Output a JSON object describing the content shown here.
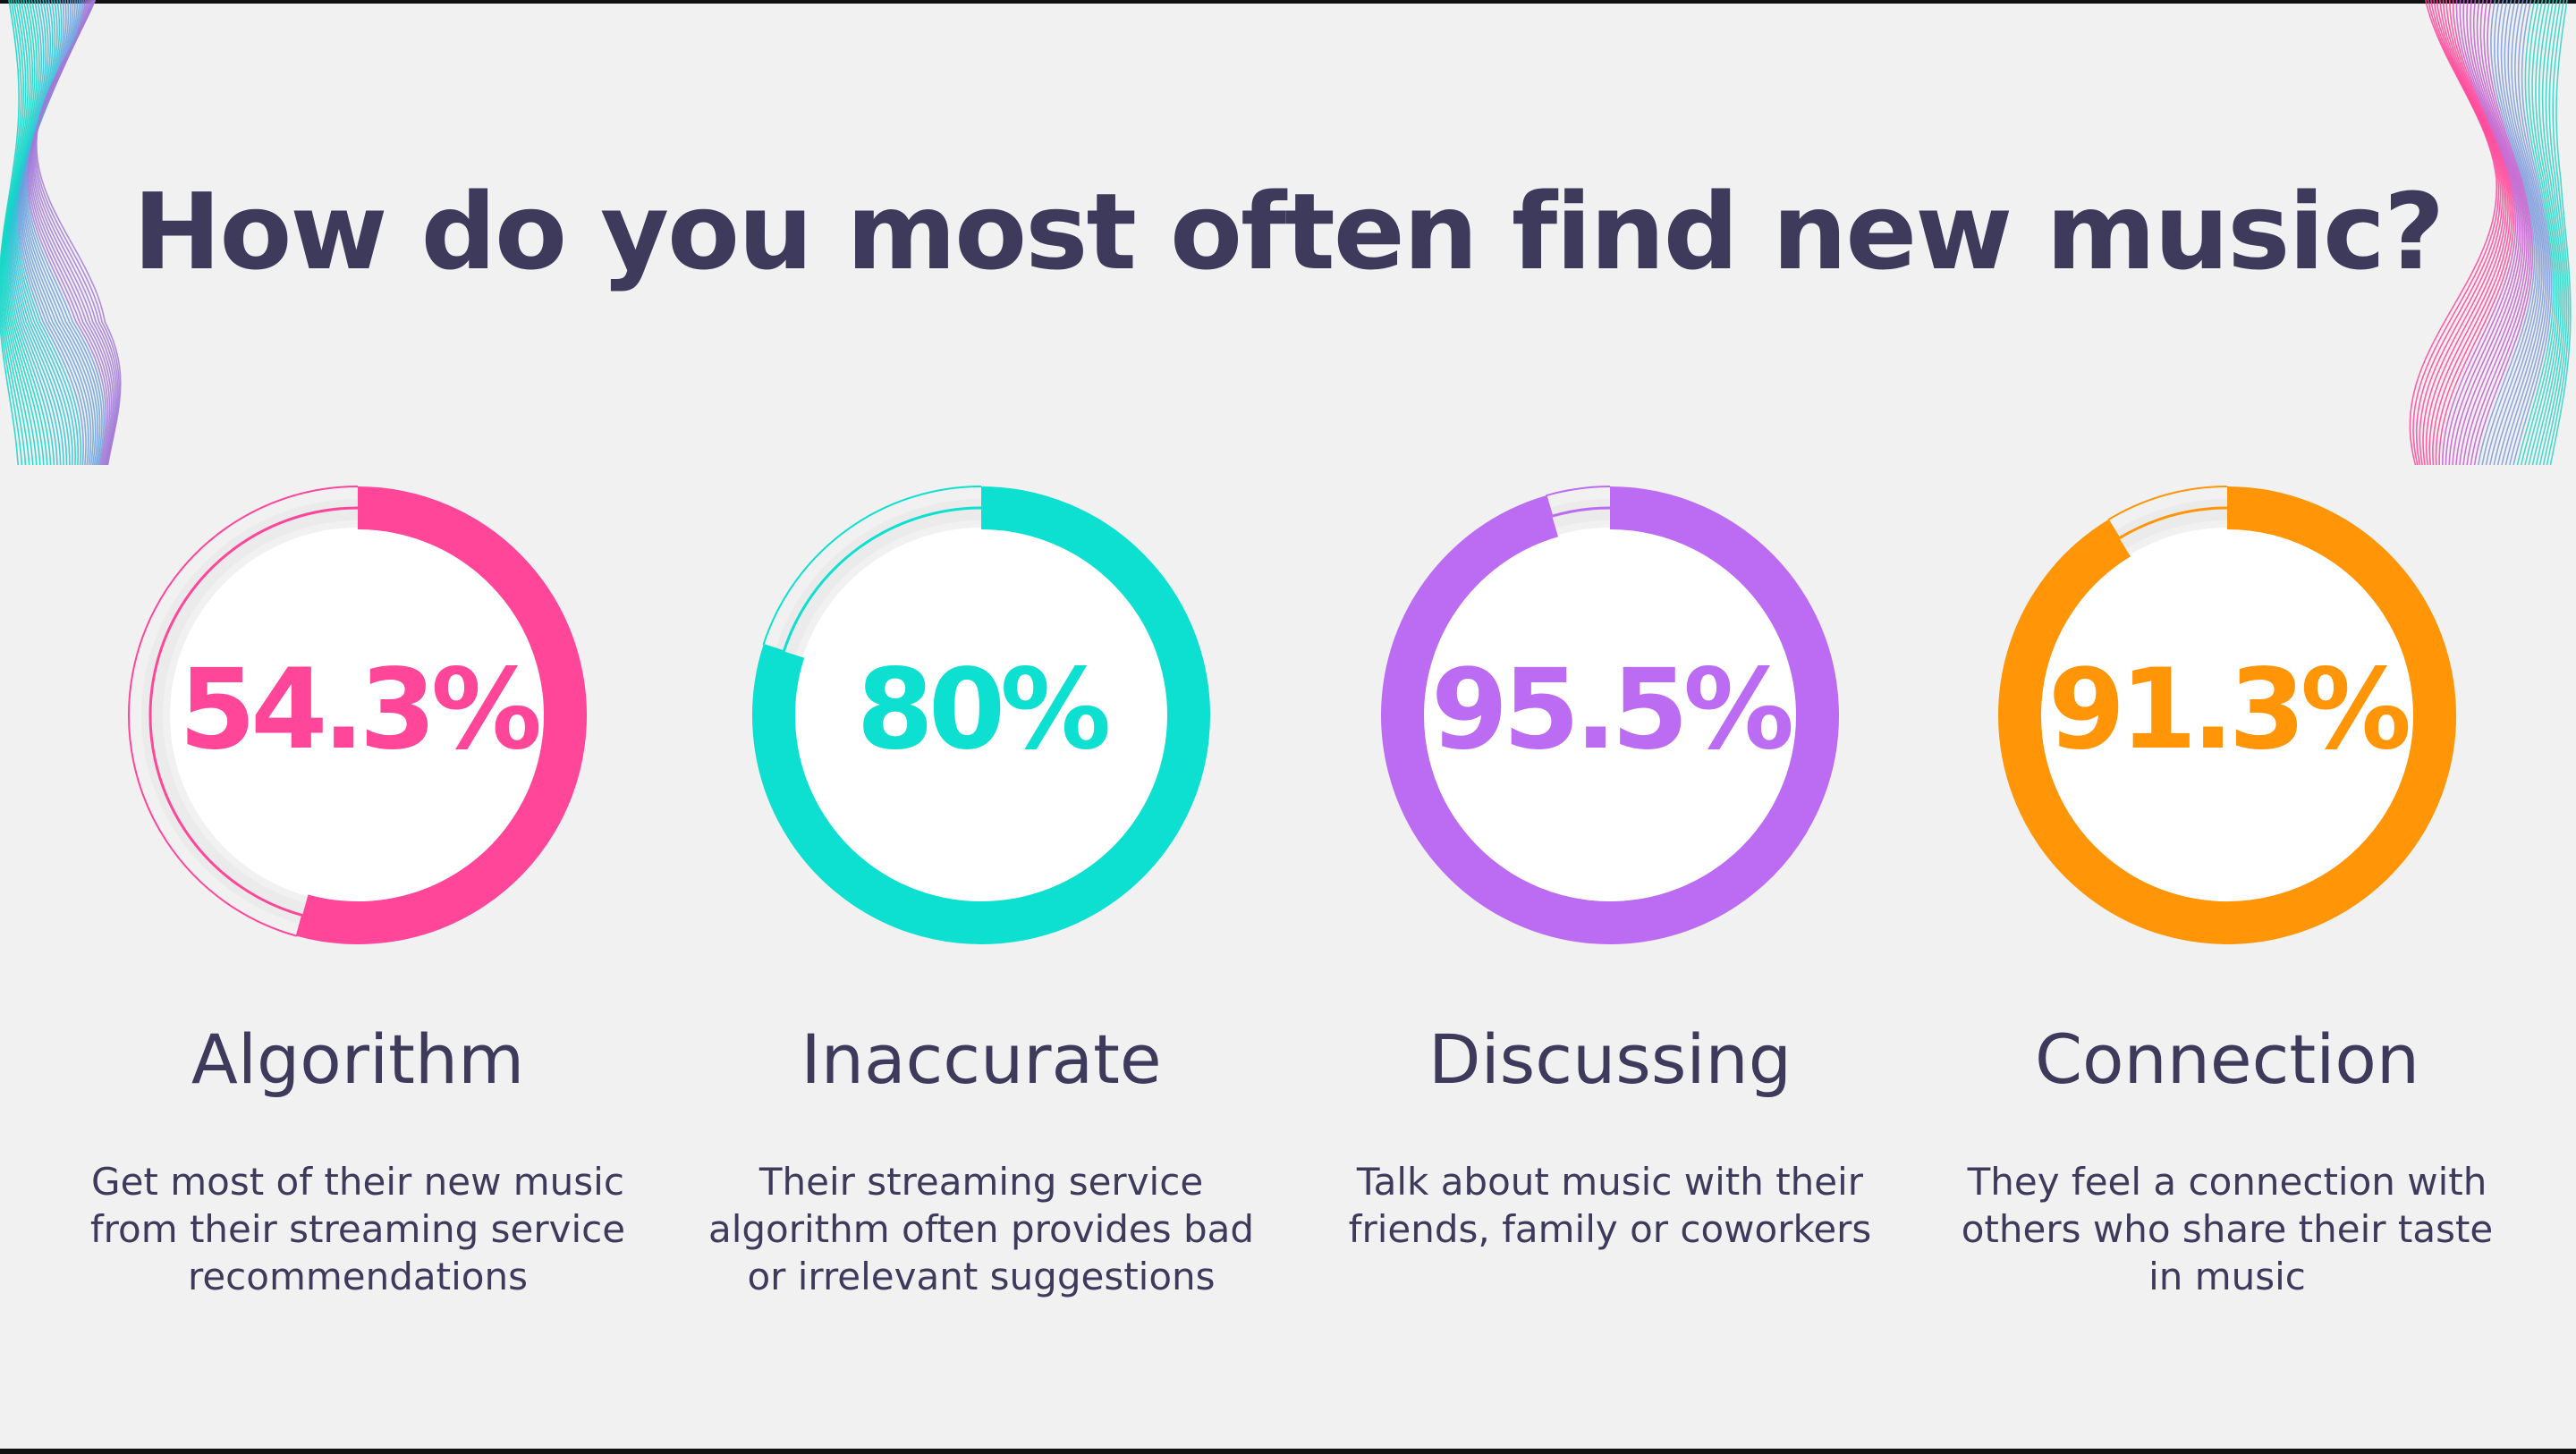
{
  "chart_data": {
    "type": "donut",
    "title": "How do you most often find new music?",
    "items": [
      {
        "label": "Algorithm",
        "value": 54.3,
        "display": "54.3%",
        "color": "#ff4699",
        "description": "Get most of their new music from their streaming service recommendations"
      },
      {
        "label": "Inaccurate",
        "value": 80,
        "display": "80%",
        "color": "#0de0d0",
        "description": "Their streaming service algorithm often provides bad or irrelevant suggestions"
      },
      {
        "label": "Discussing",
        "value": 95.5,
        "display": "95.5%",
        "color": "#bc6cf2",
        "description": "Talk about music with their friends, family or coworkers"
      },
      {
        "label": "Connection",
        "value": 91.3,
        "display": "91.3%",
        "color": "#ff9507",
        "description": "They feel a connection with others who share their taste in music"
      }
    ]
  },
  "decor": {
    "left_wave_colors": [
      "#11d6c8",
      "#2fc3d6",
      "#6aa0de",
      "#a27ad8"
    ],
    "right_wave_colors": [
      "#2ed3c6",
      "#7d9bdc",
      "#c25fcf",
      "#ff4699"
    ]
  }
}
